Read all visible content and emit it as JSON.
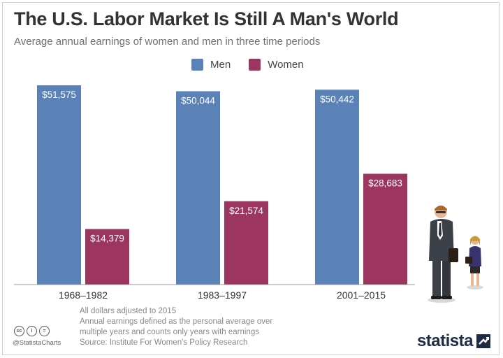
{
  "title": "The U.S. Labor Market Is Still A Man's World",
  "subtitle": "Average annual earnings of women and men in three time periods",
  "colors": {
    "men": "#5b82b6",
    "women": "#9c3660",
    "axis": "#9a9a9a",
    "title": "#333333"
  },
  "chart_data": {
    "type": "bar",
    "title": "The U.S. Labor Market Is Still A Man's World",
    "subtitle": "Average annual earnings of women and men in three time periods",
    "categories": [
      "1968–1982",
      "1983–1997",
      "2001–2015"
    ],
    "series": [
      {
        "name": "Men",
        "values": [
          51575,
          50044,
          50442
        ],
        "labels": [
          "$51,575",
          "$50,044",
          "$50,442"
        ],
        "color": "#5b82b6"
      },
      {
        "name": "Women",
        "values": [
          14379,
          21574,
          28683
        ],
        "labels": [
          "$14,379",
          "$21,574",
          "$28,683"
        ],
        "color": "#9c3660"
      }
    ],
    "ylim": [
      0,
      51575
    ],
    "grid": false,
    "legend": "top-center",
    "xlabel": "",
    "ylabel": ""
  },
  "notes": [
    "All dollars adjusted to 2015",
    "Annual earnings defined as the personal average over",
    "multiple years and counts only years with earnings",
    "Source: Institute For Women's Policy Research"
  ],
  "license_icons": [
    "cc-icon",
    "attribution-icon",
    "no-derivatives-icon"
  ],
  "handle": "@StatistaCharts",
  "brand": "statista"
}
